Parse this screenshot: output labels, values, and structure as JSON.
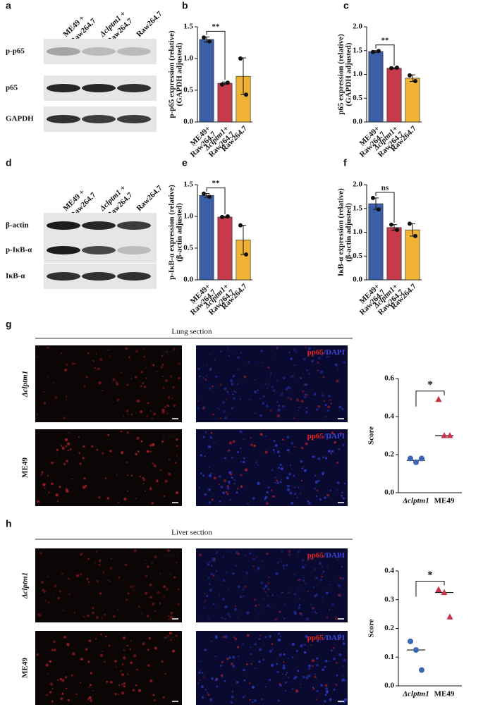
{
  "blot_a": {
    "letter": "a",
    "columns": [
      [
        "ME49 +",
        "Raw264.7"
      ],
      [
        "Δclptm1 +",
        "Raw264.7"
      ],
      [
        "Raw264.7"
      ]
    ],
    "rows": [
      "p-p65",
      "p65",
      "GAPDH"
    ]
  },
  "blot_d": {
    "letter": "d",
    "columns": [
      [
        "ME49 +",
        "Raw264.7"
      ],
      [
        "Δclptm1 +",
        "Raw264.7"
      ],
      [
        "Raw264.7"
      ]
    ],
    "rows": [
      "β-actin",
      "p-IκB-α",
      "IκB-α"
    ]
  },
  "micro_g": {
    "letter": "g",
    "title": "Lung section",
    "rows": [
      "Δclptm1",
      "ME49"
    ],
    "stain": "pp65",
    "merge": [
      "pp65",
      "/DAPI"
    ]
  },
  "micro_h": {
    "letter": "h",
    "title": "Liver section",
    "rows": [
      "Δclptm1",
      "ME49"
    ],
    "stain": "pp65",
    "merge": [
      "pp65",
      "/DAPI"
    ]
  },
  "chart_data": [
    {
      "type": "bar",
      "letter": "b",
      "ylabel": [
        "p-p65 expression (relative)",
        "(GAPDH adjusted)"
      ],
      "categories": [
        [
          "ME49+",
          "Raw264.7"
        ],
        [
          "Δclptm1+",
          "Raw264.7"
        ],
        [
          "Raw264.7"
        ]
      ],
      "values": [
        1.3,
        0.61,
        0.72
      ],
      "errors": [
        0.04,
        0.02,
        0.29
      ],
      "points": [
        [
          1.33,
          1.27
        ],
        [
          0.59,
          0.62
        ],
        [
          1.0,
          0.43
        ]
      ],
      "colors": [
        "#3b5ea8",
        "#c73a4b",
        "#f0b232"
      ],
      "significance": "**",
      "ylim": [
        0,
        1.5
      ],
      "yticks": [
        {
          "value": 0,
          "label": "0.0"
        },
        0.5,
        {
          "value": 1,
          "label": "1.0"
        },
        1.5
      ]
    },
    {
      "type": "bar",
      "letter": "c",
      "ylabel": [
        "p65 expression (relative)",
        "(GAPDH adjusted)"
      ],
      "categories": [
        [
          "ME49+",
          "Raw264.7"
        ],
        [
          "Δclptm1+",
          "Raw264.7"
        ],
        [
          "Raw264.7"
        ]
      ],
      "values": [
        1.48,
        1.13,
        0.92
      ],
      "errors": [
        0.02,
        0.01,
        0.07
      ],
      "points": [
        [
          1.47,
          1.49
        ],
        [
          1.13,
          1.14
        ],
        [
          0.98,
          0.86
        ]
      ],
      "colors": [
        "#3b5ea8",
        "#c73a4b",
        "#f0b232"
      ],
      "significance": "**",
      "ylim": [
        0,
        2
      ],
      "yticks": [
        {
          "value": 0,
          "label": "0.0"
        },
        0.5,
        {
          "value": 1,
          "label": "1.0"
        },
        1.5,
        {
          "value": 2,
          "label": "2.0"
        }
      ]
    },
    {
      "type": "bar",
      "letter": "e",
      "ylabel": [
        "p-IκB-α expression (relative)",
        "(β-actin adjusted)"
      ],
      "categories": [
        [
          "ME49+",
          "Raw264.7"
        ],
        [
          "Δclptm1+",
          "Raw264.7"
        ],
        [
          "Raw264.7"
        ]
      ],
      "values": [
        1.33,
        0.99,
        0.63
      ],
      "errors": [
        0.03,
        0.01,
        0.23
      ],
      "points": [
        [
          1.36,
          1.31
        ],
        [
          0.99,
          1.0
        ],
        [
          0.86,
          0.4
        ]
      ],
      "colors": [
        "#3b5ea8",
        "#c73a4b",
        "#f0b232"
      ],
      "significance": "**",
      "ylim": [
        0,
        1.5
      ],
      "yticks": [
        {
          "value": 0,
          "label": "0.0"
        },
        0.5,
        {
          "value": 1,
          "label": "1.0"
        },
        1.5
      ]
    },
    {
      "type": "bar",
      "letter": "f",
      "ylabel": [
        "IκB-α expression (relative)",
        "(β-actin adjusted)"
      ],
      "categories": [
        [
          "ME49+",
          "Raw264.7"
        ],
        [
          "Δclptm1+",
          "Raw264.7"
        ],
        [
          "Raw264.7"
        ]
      ],
      "values": [
        1.6,
        1.1,
        1.05
      ],
      "errors": [
        0.12,
        0.06,
        0.13
      ],
      "points": [
        [
          1.72,
          1.48
        ],
        [
          1.16,
          1.05
        ],
        [
          1.18,
          0.92
        ]
      ],
      "colors": [
        "#3b5ea8",
        "#c73a4b",
        "#f0b232"
      ],
      "significance": "ns",
      "ylim": [
        0,
        2
      ],
      "yticks": [
        {
          "value": 0,
          "label": "0.0"
        },
        0.5,
        {
          "value": 1,
          "label": "1.0"
        },
        1.5,
        {
          "value": 2,
          "label": "2.0"
        }
      ]
    },
    {
      "type": "dot",
      "ylabel": "Score",
      "categories": [
        "Δclptm1",
        "ME49"
      ],
      "values": [
        [
          0.18,
          0.16,
          0.18
        ],
        [
          0.49,
          0.3,
          0.3
        ]
      ],
      "centers": [
        0.17,
        0.3
      ],
      "colors": [
        "#3a66b4",
        "#c9344c"
      ],
      "markers": [
        "circle",
        "triangle"
      ],
      "significance": "*",
      "ylim": [
        0,
        0.6
      ],
      "yticks": [
        {
          "value": 0,
          "label": "0.0"
        },
        0.2,
        0.4,
        0.6
      ]
    },
    {
      "type": "dot",
      "ylabel": "Score",
      "categories": [
        "Δclptm1",
        "ME49"
      ],
      "values": [
        [
          0.155,
          0.125,
          0.055
        ],
        [
          0.335,
          0.325,
          0.24
        ]
      ],
      "centers": [
        0.125,
        0.325
      ],
      "colors": [
        "#3a66b4",
        "#c9344c"
      ],
      "markers": [
        "circle",
        "triangle"
      ],
      "significance": "*",
      "ylim": [
        0,
        0.4
      ],
      "yticks": [
        {
          "value": 0,
          "label": "0.0"
        },
        0.1,
        0.2,
        0.3,
        0.4
      ]
    }
  ]
}
